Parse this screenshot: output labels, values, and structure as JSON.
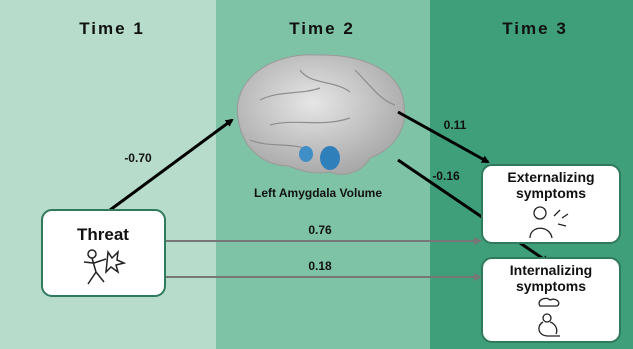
{
  "columns": [
    "Time 1",
    "Time 2",
    "Time 3"
  ],
  "nodes": [
    {
      "label": "Threat"
    },
    {
      "label": "Left Amygdala Volume"
    },
    {
      "label_lines": [
        "Externalizing",
        "symptoms"
      ]
    },
    {
      "label_lines": [
        "Internalizing",
        "symptoms"
      ]
    }
  ],
  "paths": [
    {
      "coefficient": "-0.70"
    },
    {
      "coefficient": "0.11"
    },
    {
      "coefficient": "-0.16"
    },
    {
      "coefficient": "0.76"
    },
    {
      "coefficient": "0.18"
    }
  ]
}
